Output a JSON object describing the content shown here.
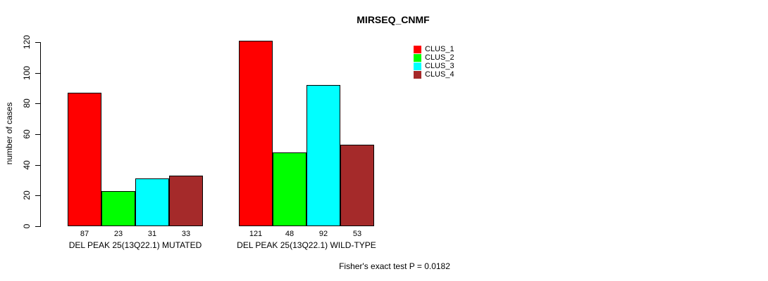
{
  "chart_data": {
    "type": "bar",
    "title": "MIRSEQ_CNMF",
    "ylabel": "number of cases",
    "xlabel": "",
    "ylim": [
      0,
      120
    ],
    "yticks": [
      0,
      20,
      40,
      60,
      80,
      100,
      120
    ],
    "grid": false,
    "legend_position": "top-right",
    "bar_value_labels": true,
    "categories": [
      "DEL PEAK 25(13Q22.1) MUTATED",
      "DEL PEAK 25(13Q22.1) WILD-TYPE"
    ],
    "series": [
      {
        "name": "CLUS_1",
        "color": "#ff0000",
        "values": [
          87,
          121
        ]
      },
      {
        "name": "CLUS_2",
        "color": "#00ff00",
        "values": [
          23,
          48
        ]
      },
      {
        "name": "CLUS_3",
        "color": "#00ffff",
        "values": [
          31,
          92
        ]
      },
      {
        "name": "CLUS_4",
        "color": "#a52a2a",
        "values": [
          33,
          53
        ]
      }
    ],
    "annotation": "Fisher's exact test P = 0.0182"
  }
}
